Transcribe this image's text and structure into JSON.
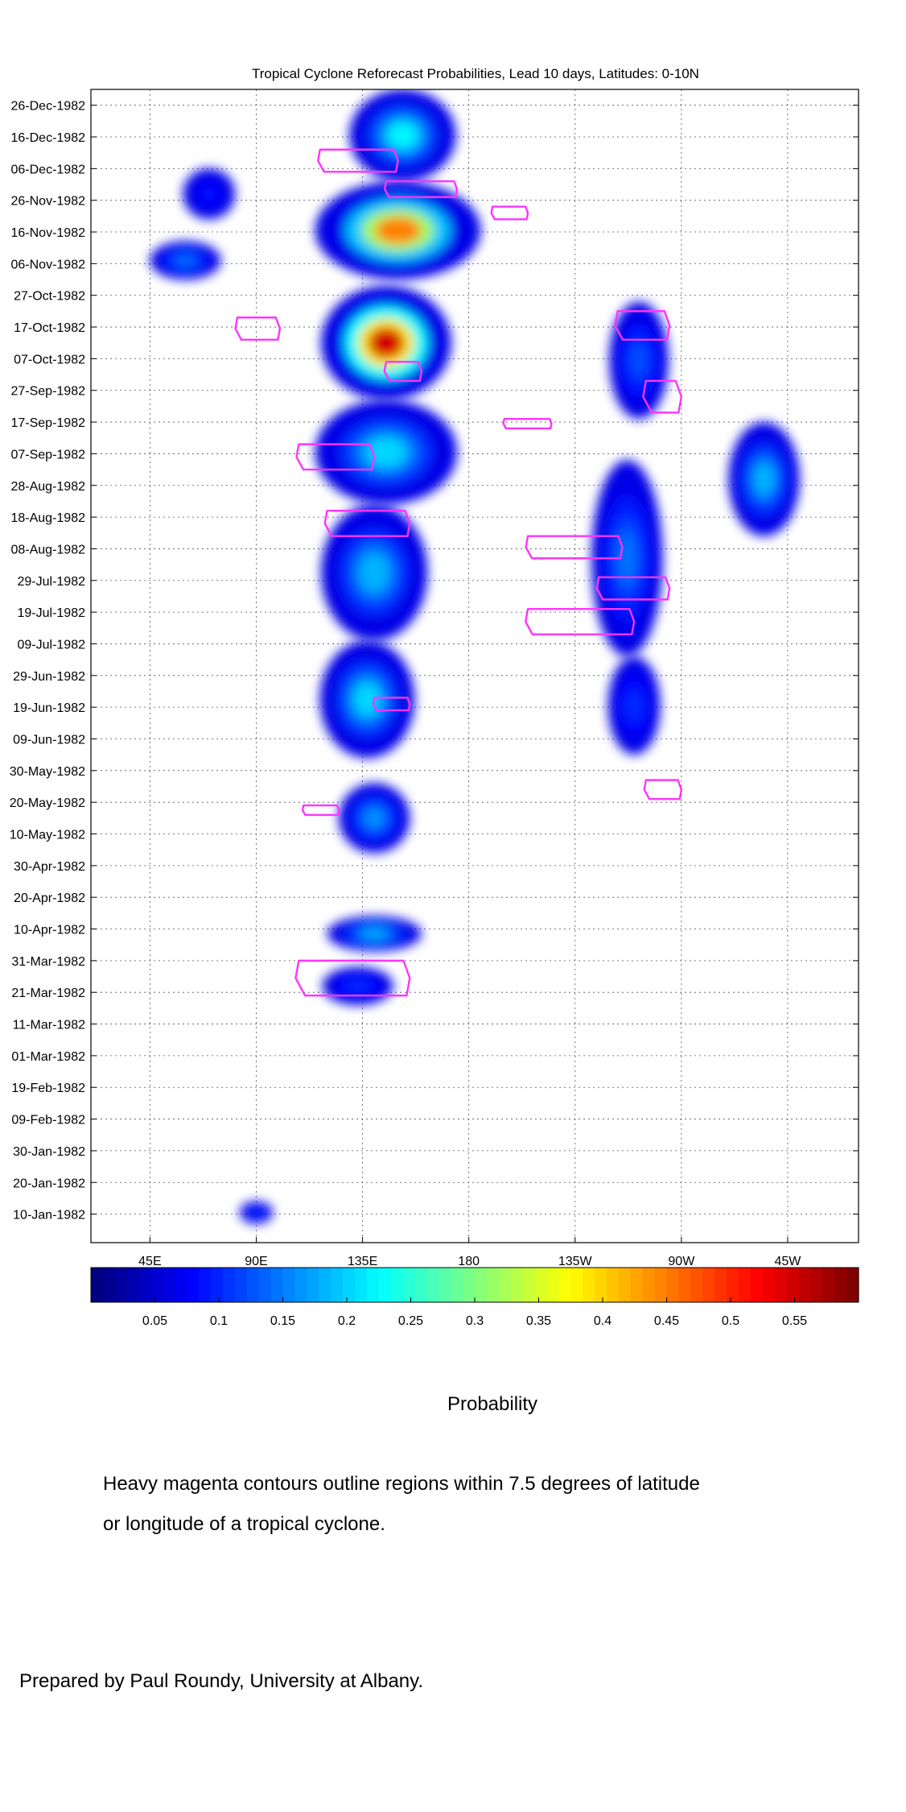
{
  "chart_data": {
    "type": "heatmap",
    "title": "Tropical Cyclone Reforecast Probabilities, Lead 10 days, Latitudes: 0-10N",
    "xlabel": "",
    "ylabel": "",
    "x_tick_labels": [
      "45E",
      "90E",
      "135E",
      "180",
      "135W",
      "90W",
      "45W"
    ],
    "x_range_deg_east": [
      20,
      345
    ],
    "y_tick_labels": [
      "26-Dec-1982",
      "16-Dec-1982",
      "06-Dec-1982",
      "26-Nov-1982",
      "16-Nov-1982",
      "06-Nov-1982",
      "27-Oct-1982",
      "17-Oct-1982",
      "07-Oct-1982",
      "27-Sep-1982",
      "17-Sep-1982",
      "07-Sep-1982",
      "28-Aug-1982",
      "18-Aug-1982",
      "08-Aug-1982",
      "29-Jul-1982",
      "19-Jul-1982",
      "09-Jul-1982",
      "29-Jun-1982",
      "19-Jun-1982",
      "09-Jun-1982",
      "30-May-1982",
      "20-May-1982",
      "10-May-1982",
      "30-Apr-1982",
      "20-Apr-1982",
      "10-Apr-1982",
      "31-Mar-1982",
      "21-Mar-1982",
      "11-Mar-1982",
      "01-Mar-1982",
      "19-Feb-1982",
      "09-Feb-1982",
      "30-Jan-1982",
      "20-Jan-1982",
      "10-Jan-1982"
    ],
    "y_range": [
      "1982-01-01",
      "1982-12-31"
    ],
    "grid": true,
    "colorbar": {
      "label": "Probability",
      "range": [
        0,
        0.6
      ],
      "tick_labels": [
        "0.05",
        "0.1",
        "0.15",
        "0.2",
        "0.25",
        "0.3",
        "0.35",
        "0.4",
        "0.45",
        "0.5",
        "0.55"
      ],
      "colormap": "jet"
    },
    "probability_regions": [
      {
        "lon": 152,
        "start": "1982-12-02",
        "end": "1982-12-31",
        "width": 45,
        "peak": 0.22
      },
      {
        "lon": 150,
        "start": "1982-11-01",
        "end": "1982-12-02",
        "width": 70,
        "peak": 0.45
      },
      {
        "lon": 70,
        "start": "1982-11-20",
        "end": "1982-12-06",
        "width": 22,
        "peak": 0.08
      },
      {
        "lon": 60,
        "start": "1982-11-01",
        "end": "1982-11-13",
        "width": 30,
        "peak": 0.14
      },
      {
        "lon": 145,
        "start": "1982-09-24",
        "end": "1982-10-30",
        "width": 55,
        "peak": 0.55
      },
      {
        "lon": 145,
        "start": "1982-08-22",
        "end": "1982-09-24",
        "width": 60,
        "peak": 0.2
      },
      {
        "lon": 140,
        "start": "1982-07-10",
        "end": "1982-08-22",
        "width": 45,
        "peak": 0.18
      },
      {
        "lon": 137,
        "start": "1982-06-03",
        "end": "1982-07-10",
        "width": 40,
        "peak": 0.2
      },
      {
        "lon": 252,
        "start": "1982-09-18",
        "end": "1982-10-25",
        "width": 25,
        "peak": 0.12
      },
      {
        "lon": 247,
        "start": "1982-07-05",
        "end": "1982-09-05",
        "width": 30,
        "peak": 0.14
      },
      {
        "lon": 250,
        "start": "1982-06-04",
        "end": "1982-07-05",
        "width": 22,
        "peak": 0.1
      },
      {
        "lon": 305,
        "start": "1982-08-12",
        "end": "1982-09-17",
        "width": 30,
        "peak": 0.18
      },
      {
        "lon": 140,
        "start": "1982-05-04",
        "end": "1982-05-26",
        "width": 30,
        "peak": 0.16
      },
      {
        "lon": 140,
        "start": "1982-04-03",
        "end": "1982-04-14",
        "width": 40,
        "peak": 0.18
      },
      {
        "lon": 133,
        "start": "1982-03-17",
        "end": "1982-03-29",
        "width": 30,
        "peak": 0.1
      },
      {
        "lon": 90,
        "start": "1982-01-07",
        "end": "1982-01-14",
        "width": 14,
        "peak": 0.1
      }
    ],
    "cyclone_contours_lon_date": [
      {
        "lon": [
          117,
          150
        ],
        "date": [
          "1982-12-05",
          "1982-12-12"
        ]
      },
      {
        "lon": [
          145,
          175
        ],
        "date": [
          "1982-11-27",
          "1982-12-02"
        ]
      },
      {
        "lon": [
          190,
          205
        ],
        "date": [
          "1982-11-20",
          "1982-11-24"
        ]
      },
      {
        "lon": [
          82,
          100
        ],
        "date": [
          "1982-10-13",
          "1982-10-20"
        ]
      },
      {
        "lon": [
          243,
          265
        ],
        "date": [
          "1982-10-13",
          "1982-10-22"
        ]
      },
      {
        "lon": [
          145,
          160
        ],
        "date": [
          "1982-09-30",
          "1982-10-06"
        ]
      },
      {
        "lon": [
          255,
          270
        ],
        "date": [
          "1982-09-20",
          "1982-09-30"
        ]
      },
      {
        "lon": [
          195,
          215
        ],
        "date": [
          "1982-09-15",
          "1982-09-18"
        ]
      },
      {
        "lon": [
          108,
          140
        ],
        "date": [
          "1982-09-02",
          "1982-09-10"
        ]
      },
      {
        "lon": [
          120,
          155
        ],
        "date": [
          "1982-08-12",
          "1982-08-20"
        ]
      },
      {
        "lon": [
          205,
          245
        ],
        "date": [
          "1982-08-05",
          "1982-08-12"
        ]
      },
      {
        "lon": [
          235,
          265
        ],
        "date": [
          "1982-07-23",
          "1982-07-30"
        ]
      },
      {
        "lon": [
          205,
          250
        ],
        "date": [
          "1982-07-12",
          "1982-07-20"
        ]
      },
      {
        "lon": [
          140,
          155
        ],
        "date": [
          "1982-06-18",
          "1982-06-22"
        ]
      },
      {
        "lon": [
          255,
          270
        ],
        "date": [
          "1982-05-21",
          "1982-05-27"
        ]
      },
      {
        "lon": [
          110,
          125
        ],
        "date": [
          "1982-05-16",
          "1982-05-19"
        ]
      },
      {
        "lon": [
          108,
          155
        ],
        "date": [
          "1982-03-20",
          "1982-03-31"
        ]
      }
    ]
  },
  "captions": {
    "note_line1": "Heavy magenta contours outline regions within 7.5 degrees of latitude",
    "note_line2": "or longitude of a tropical cyclone.",
    "credit": "Prepared by Paul Roundy, University at Albany."
  },
  "colors": {
    "contour": "#ff33ff",
    "axes": "#000000",
    "grid": "#555555"
  }
}
